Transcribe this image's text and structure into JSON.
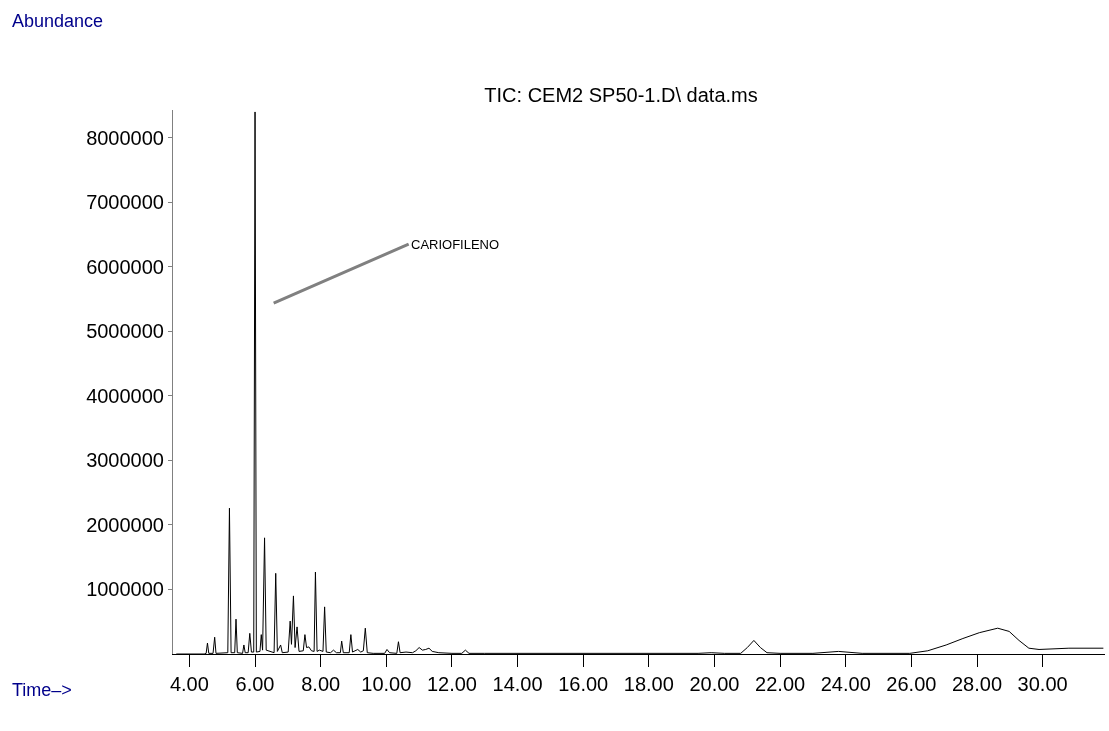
{
  "chart_data": {
    "type": "line",
    "title": "TIC: CEM2 SP50-1.D\\ data.ms",
    "xlabel": "Time–>",
    "ylabel": "Abundance",
    "annotations": [
      "CARIOFILENO"
    ],
    "x": [
      3.6,
      4.45,
      4.51,
      4.55,
      4.59,
      4.72,
      4.77,
      4.81,
      5.17,
      5.22,
      5.27,
      5.38,
      5.42,
      5.46,
      5.62,
      5.66,
      5.7,
      5.79,
      5.84,
      5.89,
      5.96,
      6.0,
      6.04,
      6.15,
      6.19,
      6.23,
      6.29,
      6.34,
      6.58,
      6.63,
      6.68,
      6.78,
      6.83,
      7.01,
      7.07,
      7.11,
      7.17,
      7.22,
      7.28,
      7.34,
      7.47,
      7.52,
      7.57,
      7.64,
      7.72,
      7.8,
      7.84,
      7.89,
      7.96,
      8.07,
      8.12,
      8.17,
      8.3,
      8.39,
      8.48,
      8.6,
      8.64,
      8.69,
      8.87,
      8.92,
      8.97,
      9.13,
      9.22,
      9.3,
      9.36,
      9.42,
      9.6,
      9.95,
      10.02,
      10.1,
      10.32,
      10.37,
      10.42,
      10.6,
      10.8,
      10.9,
      11.0,
      11.1,
      11.2,
      11.3,
      11.4,
      11.6,
      12.0,
      12.3,
      12.41,
      12.52,
      13.0,
      19.5,
      19.9,
      20.3,
      20.8,
      21.0,
      21.2,
      21.4,
      21.6,
      22.0,
      23.0,
      23.78,
      24.5,
      25.95,
      26.5,
      27.06,
      27.57,
      28.07,
      28.63,
      28.98,
      29.28,
      29.58,
      29.89,
      30.8,
      31.85
    ],
    "values": [
      0,
      0,
      10000,
      170000,
      10000,
      10000,
      260000,
      10000,
      20000,
      2260000,
      20000,
      20000,
      540000,
      20000,
      10000,
      140000,
      20000,
      20000,
      320000,
      30000,
      30000,
      8400000,
      30000,
      40000,
      300000,
      60000,
      1800000,
      60000,
      20000,
      1250000,
      40000,
      140000,
      20000,
      30000,
      510000,
      150000,
      900000,
      100000,
      420000,
      40000,
      50000,
      300000,
      100000,
      110000,
      50000,
      40000,
      1270000,
      40000,
      60000,
      40000,
      730000,
      30000,
      20000,
      60000,
      20000,
      20000,
      200000,
      20000,
      20000,
      300000,
      30000,
      70000,
      30000,
      50000,
      400000,
      20000,
      10000,
      10000,
      70000,
      20000,
      10000,
      190000,
      20000,
      30000,
      20000,
      50000,
      100000,
      60000,
      70000,
      90000,
      40000,
      20000,
      10000,
      10000,
      60000,
      10000,
      10000,
      10000,
      20000,
      10000,
      10000,
      100000,
      210000,
      100000,
      20000,
      10000,
      10000,
      40000,
      10000,
      10000,
      50000,
      140000,
      240000,
      330000,
      400000,
      350000,
      210000,
      90000,
      70000,
      90000,
      90000
    ],
    "color": "#000000",
    "xlim": [
      3.5,
      31.9
    ],
    "ylim": [
      0,
      8430000
    ],
    "xticks": [
      {
        "value": 4,
        "label": "4.00"
      },
      {
        "value": 6,
        "label": "6.00"
      },
      {
        "value": 8,
        "label": "8.00"
      },
      {
        "value": 10,
        "label": "10.00"
      },
      {
        "value": 12,
        "label": "12.00"
      },
      {
        "value": 14,
        "label": "14.00"
      },
      {
        "value": 16,
        "label": "16.00"
      },
      {
        "value": 18,
        "label": "18.00"
      },
      {
        "value": 20,
        "label": "20.00"
      },
      {
        "value": 22,
        "label": "22.00"
      },
      {
        "value": 24,
        "label": "24.00"
      },
      {
        "value": 26,
        "label": "26.00"
      },
      {
        "value": 28,
        "label": "28.00"
      },
      {
        "value": 30,
        "label": "30.00"
      }
    ],
    "yticks": [
      1000000,
      2000000,
      3000000,
      4000000,
      5000000,
      6000000,
      7000000,
      8000000
    ],
    "marker": "none",
    "line_style": "solid"
  }
}
